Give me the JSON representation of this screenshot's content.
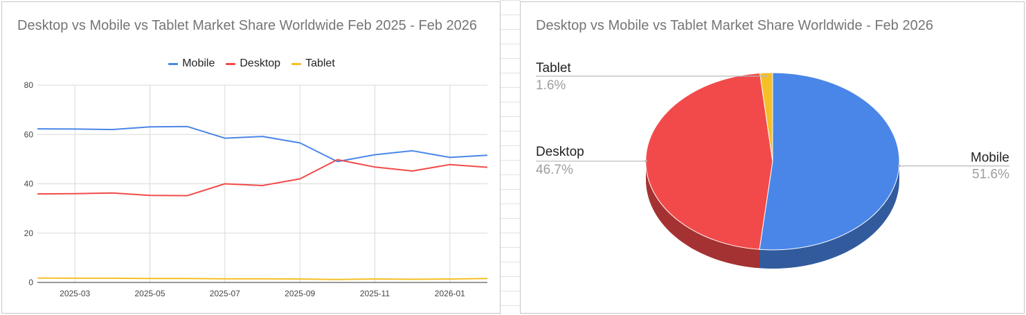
{
  "colors": {
    "mobile": "#4a86e8",
    "desktop": "#f24a4a",
    "tablet": "#f6bf26",
    "grid": "#d9d9d9",
    "axis_text": "#444444"
  },
  "chart_data": [
    {
      "type": "line",
      "title": "Desktop vs Mobile vs Tablet Market Share Worldwide Feb 2025 - Feb 2026",
      "x": [
        "2025-02",
        "2025-03",
        "2025-04",
        "2025-05",
        "2025-06",
        "2025-07",
        "2025-08",
        "2025-09",
        "2025-10",
        "2025-11",
        "2025-12",
        "2026-01",
        "2026-02"
      ],
      "x_tick_labels": [
        "2025-03",
        "2025-05",
        "2025-07",
        "2025-09",
        "2025-11",
        "2026-01"
      ],
      "y_tick_labels": [
        "0",
        "20",
        "40",
        "60",
        "80"
      ],
      "ylim": [
        0,
        80
      ],
      "grid": true,
      "legend_position": "top-center",
      "series": [
        {
          "name": "Mobile",
          "color": "#4a86e8",
          "values": [
            62.3,
            62.2,
            62.0,
            63.1,
            63.2,
            58.5,
            59.2,
            56.6,
            49.0,
            51.8,
            53.4,
            50.7,
            51.6
          ]
        },
        {
          "name": "Desktop",
          "color": "#f24a4a",
          "values": [
            35.9,
            36.0,
            36.3,
            35.3,
            35.2,
            40.0,
            39.3,
            42.0,
            49.8,
            46.8,
            45.2,
            47.8,
            46.7
          ]
        },
        {
          "name": "Tablet",
          "color": "#f6bf26",
          "values": [
            1.8,
            1.7,
            1.7,
            1.6,
            1.6,
            1.5,
            1.5,
            1.4,
            1.2,
            1.4,
            1.3,
            1.4,
            1.6
          ]
        }
      ]
    },
    {
      "type": "pie",
      "title": "Desktop vs Mobile vs Tablet Market Share Worldwide - Feb 2026",
      "style": "3d",
      "slices": [
        {
          "name": "Mobile",
          "value": 51.6,
          "label": "51.6%",
          "color": "#4a86e8"
        },
        {
          "name": "Desktop",
          "value": 46.7,
          "label": "46.7%",
          "color": "#f24a4a"
        },
        {
          "name": "Tablet",
          "value": 1.6,
          "label": "1.6%",
          "color": "#f6bf26"
        }
      ]
    }
  ]
}
